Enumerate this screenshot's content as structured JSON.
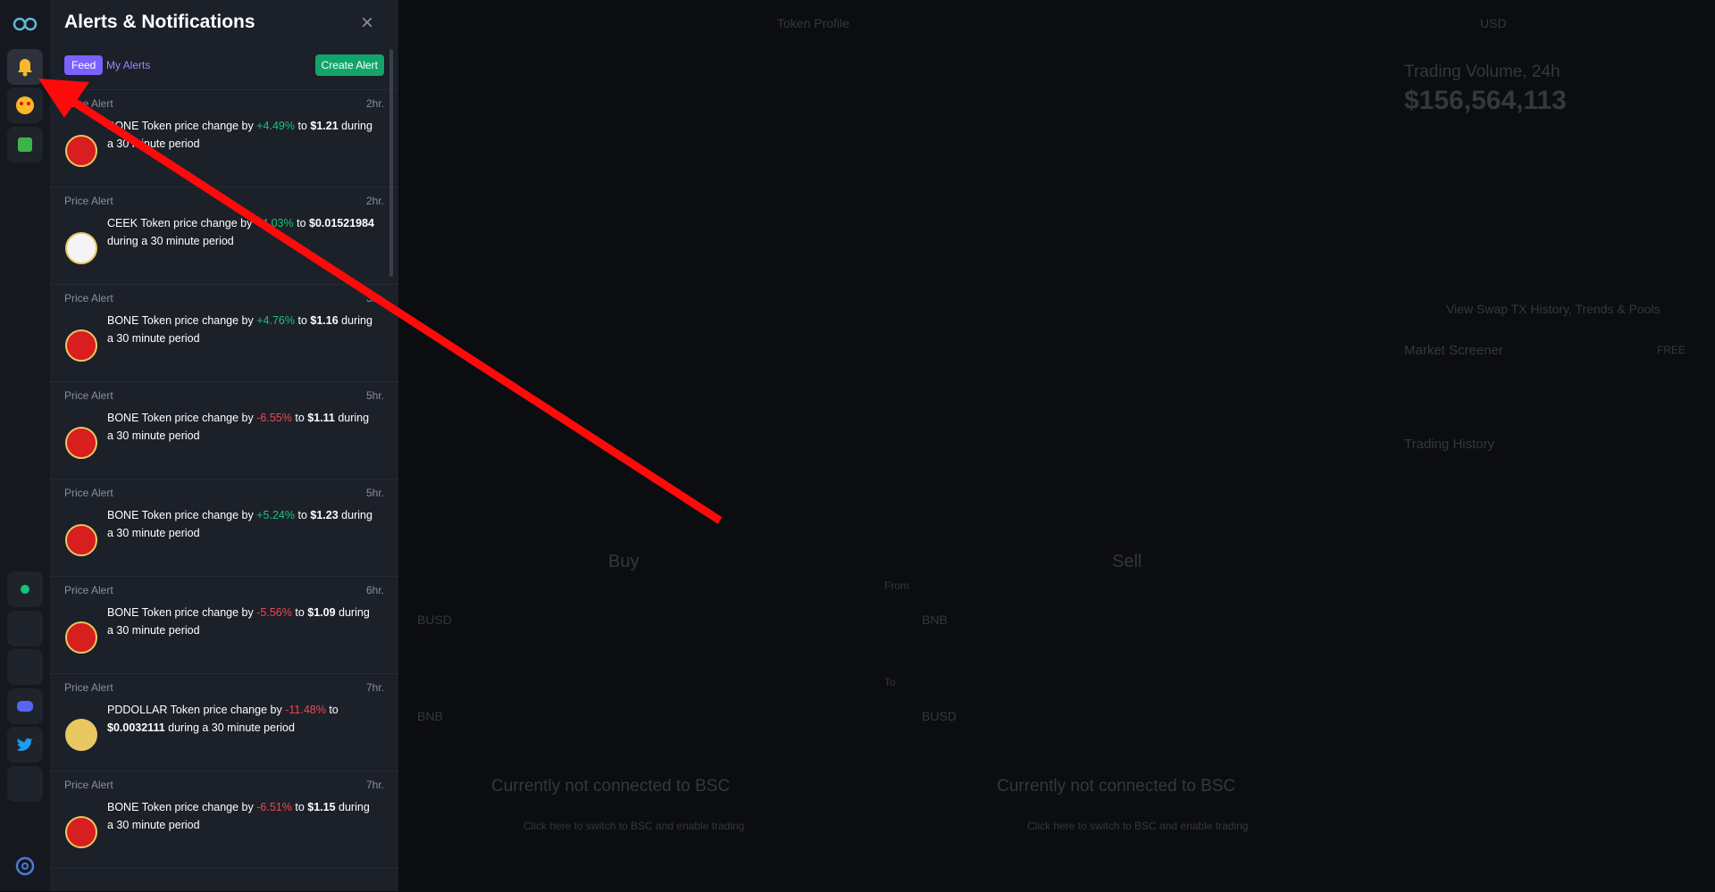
{
  "panel": {
    "title": "Alerts & Notifications",
    "tabs": [
      "Feed",
      "My Alerts"
    ],
    "create_button": "Create Alert",
    "alerts": [
      {
        "label": "Price Alert",
        "time": "2hr.",
        "subject": "BONE Token price change by",
        "change": "+4.49%",
        "to": "to",
        "price": "$1.21",
        "period": "during a 30 minute period",
        "trend": "up",
        "icon_color": "#d81e1e"
      },
      {
        "label": "Price Alert",
        "time": "2hr.",
        "subject": "CEEK Token price change by",
        "change": "+4.03%",
        "to": "to",
        "price": "$0.01521984",
        "period": "during a 30 minute period",
        "trend": "up",
        "icon_color": "#f4f4f4"
      },
      {
        "label": "Price Alert",
        "time": "3hr.",
        "subject": "BONE Token price change by",
        "change": "+4.76%",
        "to": "to",
        "price": "$1.16",
        "period": "during a 30 minute period",
        "trend": "up",
        "icon_color": "#d81e1e"
      },
      {
        "label": "Price Alert",
        "time": "5hr.",
        "subject": "BONE Token price change by",
        "change": "-6.55%",
        "to": "to",
        "price": "$1.11",
        "period": "during a 30 minute period",
        "trend": "down",
        "icon_color": "#d81e1e"
      },
      {
        "label": "Price Alert",
        "time": "5hr.",
        "subject": "BONE Token price change by",
        "change": "+5.24%",
        "to": "to",
        "price": "$1.23",
        "period": "during a 30 minute period",
        "trend": "up",
        "icon_color": "#d81e1e"
      },
      {
        "label": "Price Alert",
        "time": "6hr.",
        "subject": "BONE Token price change by",
        "change": "-5.56%",
        "to": "to",
        "price": "$1.09",
        "period": "during a 30 minute period",
        "trend": "down",
        "icon_color": "#d81e1e"
      },
      {
        "label": "Price Alert",
        "time": "7hr.",
        "subject": "PDDOLLAR Token price change by",
        "change": "-11.48%",
        "to": "to",
        "price": "$0.0032111",
        "period": "during a 30 minute period",
        "trend": "down",
        "icon_color": "#e8c860"
      },
      {
        "label": "Price Alert",
        "time": "7hr.",
        "subject": "BONE Token price change by",
        "change": "-6.51%",
        "to": "to",
        "price": "$1.15",
        "period": "during a 30 minute period",
        "trend": "down",
        "icon_color": "#d81e1e"
      }
    ]
  },
  "background": {
    "token_profile": "Token Profile",
    "volume_title": "Trading Volume, 24h",
    "volume_value": "$156,564,113",
    "swap_link": "View Swap TX History, Trends & Pools",
    "screener": "Market Screener",
    "free": "FREE",
    "history": "Trading History",
    "buy": "Buy",
    "sell": "Sell",
    "from": "From",
    "to": "To",
    "busd": "BUSD",
    "bnb": "BNB",
    "not_connected": "Currently not connected to BSC",
    "switch": "Click here to switch to BSC and enable trading",
    "usd": "USD"
  }
}
